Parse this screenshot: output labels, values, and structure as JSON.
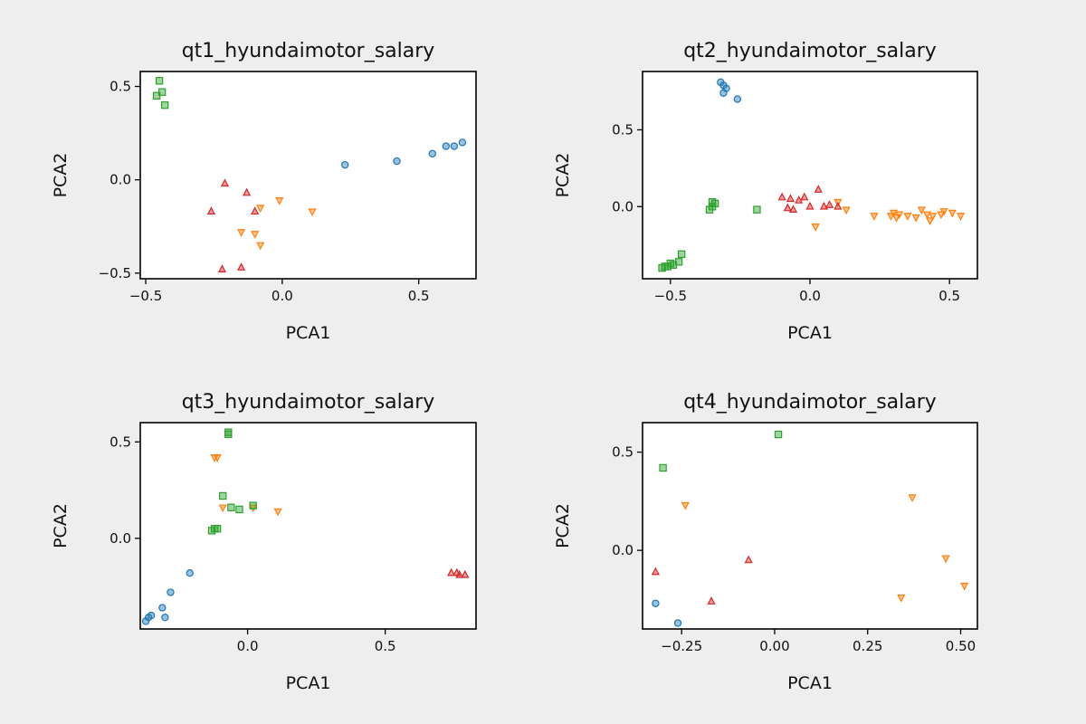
{
  "chart_data": [
    {
      "type": "scatter",
      "title": "qt1_hyundaimotor_salary",
      "xlabel": "PCA1",
      "ylabel": "PCA2",
      "xlim": [
        -0.52,
        0.71
      ],
      "ylim": [
        -0.53,
        0.58
      ],
      "xticks": [
        -0.5,
        0.0,
        0.5
      ],
      "xtick_labels": [
        "−0.5",
        "0.0",
        "0.5"
      ],
      "yticks": [
        -0.5,
        0.0,
        0.5
      ],
      "ytick_labels": [
        "−0.5",
        "0.0",
        "0.5"
      ],
      "series": [
        {
          "marker": "circle",
          "color": "#1f77b4",
          "x": [
            0.23,
            0.42,
            0.55,
            0.6,
            0.63,
            0.66
          ],
          "y": [
            0.08,
            0.1,
            0.14,
            0.18,
            0.18,
            0.2
          ]
        },
        {
          "marker": "triangle-down",
          "color": "#ff7f0e",
          "x": [
            -0.01,
            0.11,
            -0.08,
            -0.15,
            -0.1,
            -0.08
          ],
          "y": [
            -0.11,
            -0.17,
            -0.15,
            -0.28,
            -0.29,
            -0.35
          ]
        },
        {
          "marker": "square",
          "color": "#2ca02c",
          "x": [
            -0.45,
            -0.44,
            -0.46,
            -0.43
          ],
          "y": [
            0.53,
            0.47,
            0.45,
            0.4
          ]
        },
        {
          "marker": "triangle-up",
          "color": "#d62728",
          "x": [
            -0.21,
            -0.13,
            -0.26,
            -0.1,
            -0.22,
            -0.15
          ],
          "y": [
            -0.02,
            -0.07,
            -0.17,
            -0.17,
            -0.48,
            -0.47
          ]
        }
      ]
    },
    {
      "type": "scatter",
      "title": "qt2_hyundaimotor_salary",
      "xlabel": "PCA1",
      "ylabel": "PCA2",
      "xlim": [
        -0.6,
        0.6
      ],
      "ylim": [
        -0.47,
        0.88
      ],
      "xticks": [
        -0.5,
        0.0,
        0.5
      ],
      "xtick_labels": [
        "−0.5",
        "0.0",
        "0.5"
      ],
      "yticks": [
        0.0,
        0.5
      ],
      "ytick_labels": [
        "0.0",
        "0.5"
      ],
      "series": [
        {
          "marker": "circle",
          "color": "#1f77b4",
          "x": [
            -0.32,
            -0.31,
            -0.3,
            -0.31,
            -0.26
          ],
          "y": [
            0.81,
            0.79,
            0.77,
            0.74,
            0.7
          ]
        },
        {
          "marker": "triangle-down",
          "color": "#ff7f0e",
          "x": [
            0.1,
            0.13,
            0.23,
            0.29,
            0.3,
            0.31,
            0.32,
            0.35,
            0.38,
            0.4,
            0.42,
            0.43,
            0.44,
            0.47,
            0.48,
            0.51,
            0.54,
            0.02
          ],
          "y": [
            0.03,
            -0.02,
            -0.06,
            -0.06,
            -0.04,
            -0.07,
            -0.05,
            -0.06,
            -0.07,
            -0.02,
            -0.05,
            -0.09,
            -0.06,
            -0.05,
            -0.03,
            -0.04,
            -0.06,
            -0.13
          ]
        },
        {
          "marker": "square",
          "color": "#2ca02c",
          "x": [
            -0.35,
            -0.34,
            -0.36,
            -0.35,
            -0.19,
            -0.46,
            -0.47,
            -0.49,
            -0.5,
            -0.51,
            -0.52,
            -0.53
          ],
          "y": [
            0.03,
            0.02,
            -0.02,
            0.0,
            -0.02,
            -0.31,
            -0.36,
            -0.38,
            -0.37,
            -0.39,
            -0.39,
            -0.4
          ]
        },
        {
          "marker": "triangle-up",
          "color": "#d62728",
          "x": [
            -0.1,
            -0.07,
            -0.04,
            -0.08,
            -0.06,
            0.0,
            0.05,
            0.07,
            0.1,
            0.03,
            -0.02
          ],
          "y": [
            0.06,
            0.05,
            0.04,
            -0.01,
            -0.02,
            0.0,
            0.0,
            0.01,
            0.0,
            0.11,
            0.06
          ]
        }
      ]
    },
    {
      "type": "scatter",
      "title": "qt3_hyundaimotor_salary",
      "xlabel": "PCA1",
      "ylabel": "PCA2",
      "xlim": [
        -0.39,
        0.83
      ],
      "ylim": [
        -0.47,
        0.6
      ],
      "xticks": [
        0.0,
        0.5
      ],
      "xtick_labels": [
        "0.0",
        "0.5"
      ],
      "yticks": [
        0.0,
        0.5
      ],
      "ytick_labels": [
        "0.0",
        "0.5"
      ],
      "series": [
        {
          "marker": "circle",
          "color": "#1f77b4",
          "x": [
            -0.36,
            -0.35,
            -0.31,
            -0.3,
            -0.28,
            -0.21,
            -0.37
          ],
          "y": [
            -0.41,
            -0.4,
            -0.36,
            -0.41,
            -0.28,
            -0.18,
            -0.43
          ]
        },
        {
          "marker": "triangle-down",
          "color": "#ff7f0e",
          "x": [
            -0.11,
            -0.12,
            -0.09,
            0.02,
            0.11
          ],
          "y": [
            0.42,
            0.42,
            0.16,
            0.16,
            0.14
          ]
        },
        {
          "marker": "square",
          "color": "#2ca02c",
          "x": [
            -0.07,
            -0.07,
            -0.09,
            -0.06,
            -0.03,
            0.02,
            -0.12,
            -0.11,
            -0.13
          ],
          "y": [
            0.55,
            0.54,
            0.22,
            0.16,
            0.15,
            0.17,
            0.05,
            0.05,
            0.04
          ]
        },
        {
          "marker": "triangle-up",
          "color": "#d62728",
          "x": [
            0.74,
            0.77,
            0.76,
            0.79
          ],
          "y": [
            -0.18,
            -0.19,
            -0.18,
            -0.19
          ]
        }
      ]
    },
    {
      "type": "scatter",
      "title": "qt4_hyundaimotor_salary",
      "xlabel": "PCA1",
      "ylabel": "PCA2",
      "xlim": [
        -0.355,
        0.545
      ],
      "ylim": [
        -0.4,
        0.65
      ],
      "xticks": [
        -0.25,
        0.0,
        0.25,
        0.5
      ],
      "xtick_labels": [
        "−0.25",
        "0.00",
        "0.25",
        "0.50"
      ],
      "yticks": [
        0.0,
        0.5
      ],
      "ytick_labels": [
        "0.0",
        "0.5"
      ],
      "series": [
        {
          "marker": "circle",
          "color": "#1f77b4",
          "x": [
            -0.32,
            -0.26
          ],
          "y": [
            -0.27,
            -0.37
          ]
        },
        {
          "marker": "triangle-down",
          "color": "#ff7f0e",
          "x": [
            -0.24,
            0.37,
            0.46,
            0.34,
            0.51
          ],
          "y": [
            0.23,
            0.27,
            -0.04,
            -0.24,
            -0.18
          ]
        },
        {
          "marker": "square",
          "color": "#2ca02c",
          "x": [
            -0.3,
            0.01
          ],
          "y": [
            0.42,
            0.59
          ]
        },
        {
          "marker": "triangle-up",
          "color": "#d62728",
          "x": [
            -0.32,
            -0.17,
            -0.07
          ],
          "y": [
            -0.11,
            -0.26,
            -0.05
          ]
        }
      ]
    }
  ]
}
